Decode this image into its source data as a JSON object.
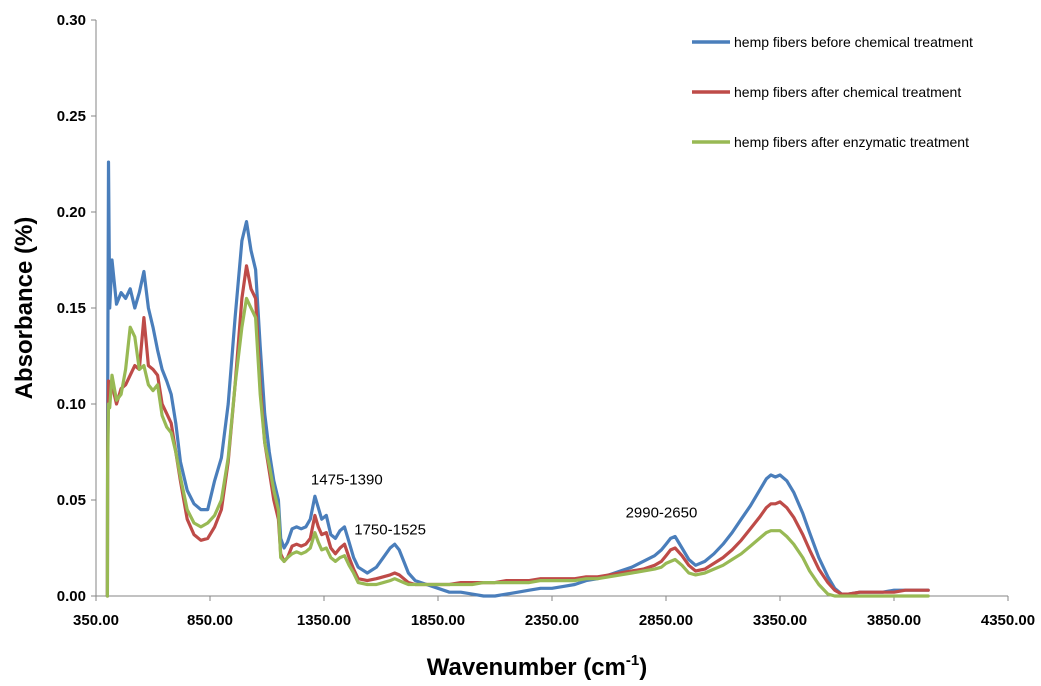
{
  "chart_data": {
    "type": "line",
    "title": "",
    "xlabel": "Wavenumber (cm",
    "xlabel_sup": "-1",
    "xlabel_close": ")",
    "ylabel": "Absorbance (%)",
    "xlim": [
      350,
      4350
    ],
    "ylim": [
      0,
      0.3
    ],
    "xticks": [
      "350.00",
      "850.00",
      "1350.00",
      "1850.00",
      "2350.00",
      "2850.00",
      "3350.00",
      "3850.00",
      "4350.00"
    ],
    "yticks": [
      "0.00",
      "0.05",
      "0.10",
      "0.15",
      "0.20",
      "0.25",
      "0.30"
    ],
    "grid": false,
    "legend_position": "top-right",
    "annotations": [
      {
        "text": "1475-1390",
        "x": 1450,
        "y": 0.058
      },
      {
        "text": "1750-1525",
        "x": 1640,
        "y": 0.032
      },
      {
        "text": "2990-2650",
        "x": 2830,
        "y": 0.041
      }
    ],
    "series": [
      {
        "name": "hemp fibers before chemical treatment",
        "color": "#4a7ebb",
        "x": [
          400,
          401,
          405,
          410,
          420,
          440,
          460,
          480,
          500,
          520,
          540,
          560,
          580,
          600,
          620,
          640,
          660,
          680,
          700,
          720,
          750,
          780,
          810,
          840,
          870,
          900,
          930,
          960,
          990,
          1010,
          1030,
          1050,
          1070,
          1090,
          1110,
          1130,
          1150,
          1160,
          1175,
          1190,
          1210,
          1230,
          1250,
          1270,
          1290,
          1310,
          1325,
          1340,
          1360,
          1380,
          1400,
          1420,
          1440,
          1460,
          1480,
          1500,
          1540,
          1580,
          1610,
          1640,
          1660,
          1680,
          1700,
          1720,
          1750,
          1800,
          1850,
          1900,
          1950,
          2000,
          2050,
          2100,
          2150,
          2200,
          2250,
          2300,
          2350,
          2400,
          2450,
          2500,
          2550,
          2600,
          2650,
          2700,
          2750,
          2800,
          2830,
          2850,
          2870,
          2890,
          2920,
          2950,
          2980,
          3020,
          3060,
          3100,
          3140,
          3180,
          3220,
          3260,
          3290,
          3310,
          3330,
          3350,
          3380,
          3410,
          3450,
          3480,
          3520,
          3560,
          3590,
          3620,
          3650,
          3700,
          3750,
          3800,
          3850,
          3900,
          3950,
          4000
        ],
        "y": [
          0.0,
          0.09,
          0.226,
          0.15,
          0.175,
          0.152,
          0.158,
          0.155,
          0.16,
          0.15,
          0.158,
          0.169,
          0.15,
          0.14,
          0.128,
          0.118,
          0.112,
          0.105,
          0.09,
          0.07,
          0.055,
          0.048,
          0.045,
          0.045,
          0.06,
          0.072,
          0.1,
          0.145,
          0.185,
          0.195,
          0.18,
          0.17,
          0.13,
          0.095,
          0.075,
          0.06,
          0.05,
          0.03,
          0.025,
          0.028,
          0.035,
          0.036,
          0.035,
          0.036,
          0.04,
          0.052,
          0.046,
          0.04,
          0.042,
          0.032,
          0.03,
          0.034,
          0.036,
          0.028,
          0.02,
          0.015,
          0.012,
          0.015,
          0.02,
          0.025,
          0.027,
          0.024,
          0.018,
          0.012,
          0.008,
          0.006,
          0.004,
          0.002,
          0.002,
          0.001,
          0.0,
          0.0,
          0.001,
          0.002,
          0.003,
          0.004,
          0.004,
          0.005,
          0.006,
          0.008,
          0.009,
          0.011,
          0.013,
          0.015,
          0.018,
          0.021,
          0.024,
          0.027,
          0.03,
          0.031,
          0.025,
          0.019,
          0.016,
          0.018,
          0.022,
          0.027,
          0.033,
          0.04,
          0.047,
          0.055,
          0.061,
          0.063,
          0.062,
          0.063,
          0.06,
          0.054,
          0.043,
          0.033,
          0.02,
          0.01,
          0.004,
          0.001,
          0.001,
          0.002,
          0.002,
          0.002,
          0.003,
          0.003,
          0.003,
          0.003
        ]
      },
      {
        "name": "hemp fibers after chemical treatment",
        "color": "#be4b48",
        "x": [
          400,
          401,
          405,
          410,
          420,
          440,
          460,
          480,
          500,
          520,
          540,
          560,
          580,
          600,
          620,
          640,
          660,
          680,
          700,
          720,
          750,
          780,
          810,
          840,
          870,
          900,
          930,
          960,
          990,
          1010,
          1030,
          1050,
          1070,
          1090,
          1110,
          1130,
          1150,
          1160,
          1175,
          1190,
          1210,
          1230,
          1250,
          1270,
          1290,
          1310,
          1325,
          1340,
          1360,
          1380,
          1400,
          1420,
          1440,
          1460,
          1480,
          1500,
          1540,
          1580,
          1610,
          1640,
          1660,
          1680,
          1700,
          1720,
          1750,
          1800,
          1850,
          1900,
          1950,
          2000,
          2050,
          2100,
          2150,
          2200,
          2250,
          2300,
          2350,
          2400,
          2450,
          2500,
          2550,
          2600,
          2650,
          2700,
          2750,
          2800,
          2830,
          2850,
          2870,
          2890,
          2920,
          2950,
          2980,
          3020,
          3060,
          3100,
          3140,
          3180,
          3220,
          3260,
          3290,
          3310,
          3330,
          3350,
          3380,
          3410,
          3450,
          3480,
          3520,
          3560,
          3590,
          3620,
          3650,
          3700,
          3750,
          3800,
          3850,
          3900,
          3950,
          4000
        ],
        "y": [
          0.0,
          0.07,
          0.112,
          0.108,
          0.11,
          0.1,
          0.108,
          0.11,
          0.115,
          0.12,
          0.118,
          0.145,
          0.12,
          0.118,
          0.115,
          0.1,
          0.095,
          0.09,
          0.075,
          0.06,
          0.04,
          0.032,
          0.029,
          0.03,
          0.036,
          0.045,
          0.07,
          0.11,
          0.155,
          0.172,
          0.16,
          0.155,
          0.11,
          0.08,
          0.065,
          0.05,
          0.04,
          0.022,
          0.018,
          0.02,
          0.026,
          0.027,
          0.026,
          0.027,
          0.03,
          0.042,
          0.036,
          0.032,
          0.033,
          0.025,
          0.022,
          0.025,
          0.027,
          0.02,
          0.014,
          0.009,
          0.008,
          0.009,
          0.01,
          0.011,
          0.012,
          0.011,
          0.009,
          0.007,
          0.006,
          0.006,
          0.006,
          0.006,
          0.007,
          0.007,
          0.007,
          0.007,
          0.008,
          0.008,
          0.008,
          0.009,
          0.009,
          0.009,
          0.009,
          0.01,
          0.01,
          0.011,
          0.012,
          0.013,
          0.014,
          0.016,
          0.018,
          0.021,
          0.024,
          0.025,
          0.021,
          0.016,
          0.013,
          0.014,
          0.017,
          0.02,
          0.024,
          0.029,
          0.035,
          0.041,
          0.046,
          0.048,
          0.048,
          0.049,
          0.046,
          0.041,
          0.032,
          0.024,
          0.014,
          0.007,
          0.003,
          0.001,
          0.001,
          0.002,
          0.002,
          0.002,
          0.002,
          0.003,
          0.003,
          0.003
        ]
      },
      {
        "name": "hemp fibers after enzymatic treatment",
        "color": "#98b954",
        "x": [
          400,
          401,
          405,
          410,
          420,
          440,
          460,
          480,
          500,
          520,
          540,
          560,
          580,
          600,
          620,
          640,
          660,
          680,
          700,
          720,
          750,
          780,
          810,
          840,
          870,
          900,
          930,
          960,
          990,
          1010,
          1030,
          1050,
          1070,
          1090,
          1110,
          1130,
          1150,
          1160,
          1175,
          1190,
          1210,
          1230,
          1250,
          1270,
          1290,
          1310,
          1325,
          1340,
          1360,
          1380,
          1400,
          1420,
          1440,
          1460,
          1480,
          1500,
          1540,
          1580,
          1610,
          1640,
          1660,
          1680,
          1700,
          1720,
          1750,
          1800,
          1850,
          1900,
          1950,
          2000,
          2050,
          2100,
          2150,
          2200,
          2250,
          2300,
          2350,
          2400,
          2450,
          2500,
          2550,
          2600,
          2650,
          2700,
          2750,
          2800,
          2830,
          2850,
          2870,
          2890,
          2920,
          2950,
          2980,
          3020,
          3060,
          3100,
          3140,
          3180,
          3220,
          3260,
          3290,
          3310,
          3330,
          3350,
          3380,
          3410,
          3450,
          3480,
          3520,
          3560,
          3590,
          3620,
          3650,
          3700,
          3750,
          3800,
          3850,
          3900,
          3950,
          4000
        ],
        "y": [
          0.0,
          0.065,
          0.1,
          0.098,
          0.115,
          0.102,
          0.105,
          0.118,
          0.14,
          0.135,
          0.118,
          0.12,
          0.11,
          0.107,
          0.11,
          0.094,
          0.088,
          0.085,
          0.075,
          0.062,
          0.045,
          0.038,
          0.036,
          0.038,
          0.042,
          0.05,
          0.072,
          0.11,
          0.14,
          0.155,
          0.15,
          0.145,
          0.105,
          0.08,
          0.068,
          0.055,
          0.045,
          0.02,
          0.018,
          0.02,
          0.022,
          0.023,
          0.022,
          0.023,
          0.025,
          0.033,
          0.028,
          0.024,
          0.025,
          0.02,
          0.018,
          0.02,
          0.021,
          0.016,
          0.012,
          0.007,
          0.006,
          0.006,
          0.007,
          0.008,
          0.009,
          0.008,
          0.007,
          0.006,
          0.006,
          0.006,
          0.006,
          0.006,
          0.006,
          0.006,
          0.007,
          0.007,
          0.007,
          0.007,
          0.007,
          0.008,
          0.008,
          0.008,
          0.008,
          0.009,
          0.009,
          0.01,
          0.011,
          0.012,
          0.013,
          0.014,
          0.015,
          0.017,
          0.018,
          0.019,
          0.016,
          0.012,
          0.011,
          0.012,
          0.014,
          0.016,
          0.019,
          0.022,
          0.026,
          0.03,
          0.033,
          0.034,
          0.034,
          0.034,
          0.031,
          0.027,
          0.02,
          0.013,
          0.006,
          0.001,
          0.0,
          0.0,
          0.0,
          0.0,
          0.0,
          0.0,
          0.0,
          0.0,
          0.0,
          0.0
        ]
      }
    ]
  }
}
